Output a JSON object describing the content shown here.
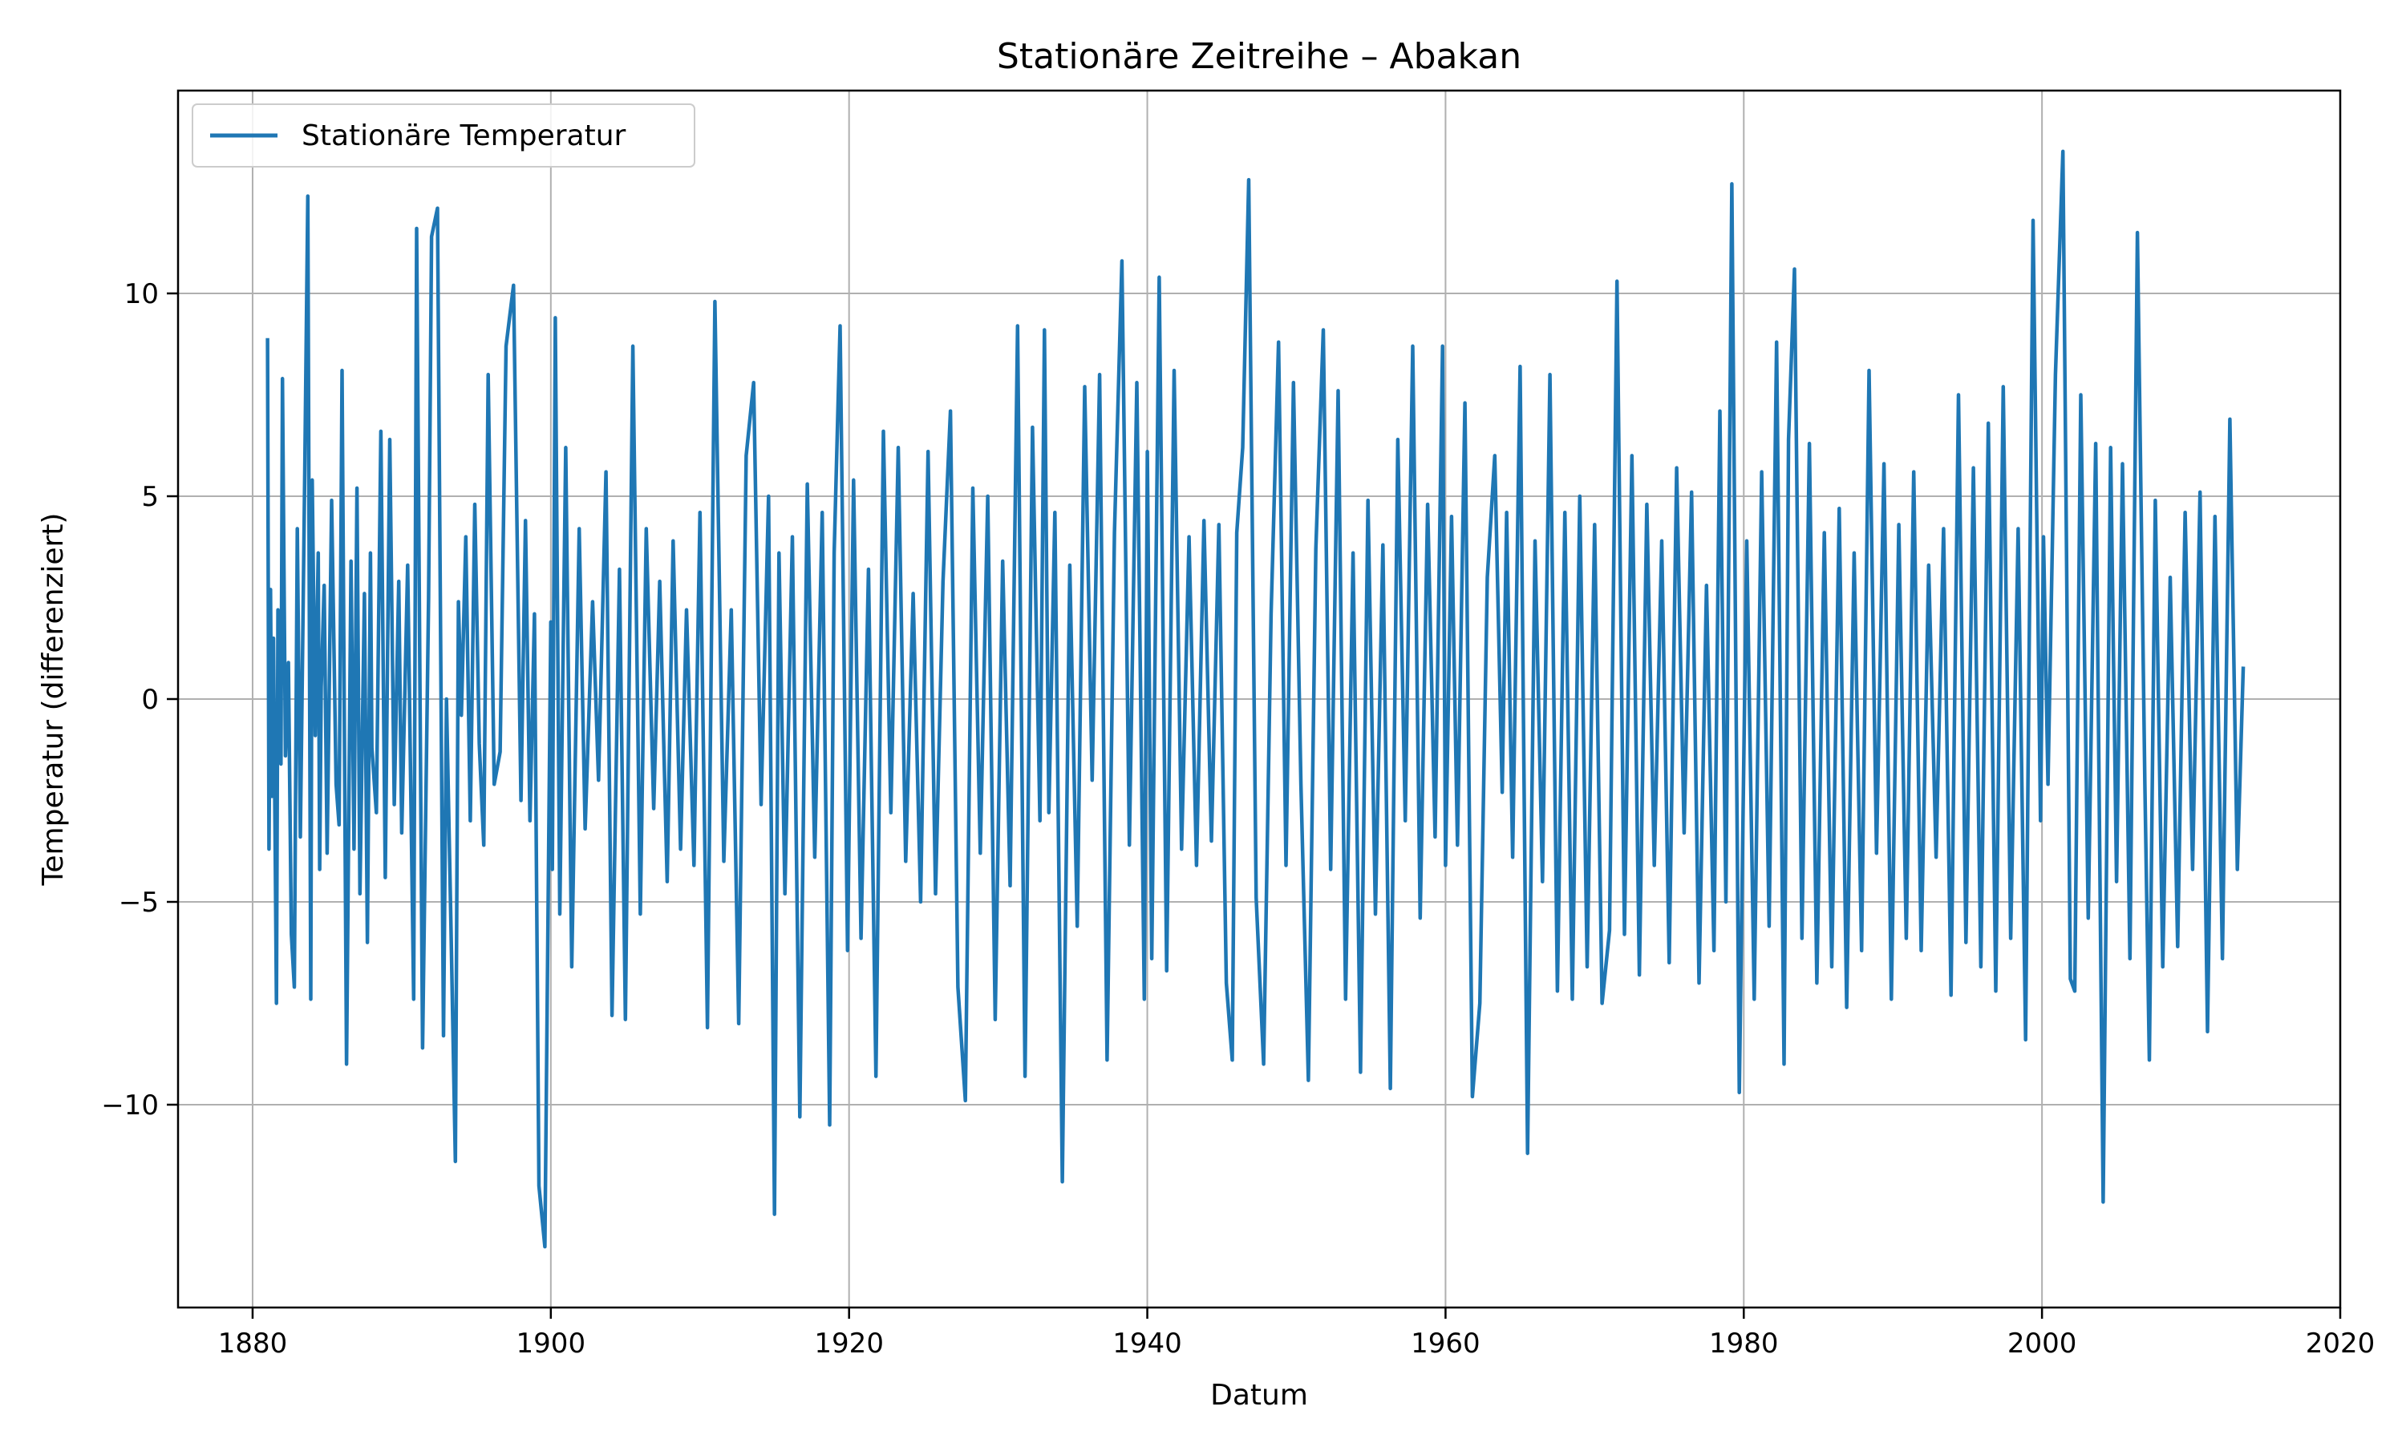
{
  "chart_data": {
    "type": "line",
    "title": "Stationäre Zeitreihe – Abakan",
    "xlabel": "Datum",
    "ylabel": "Temperatur (differenziert)",
    "xlim": [
      1875,
      2020
    ],
    "ylim": [
      -15,
      15
    ],
    "x_ticks": [
      1880,
      1900,
      1920,
      1940,
      1960,
      1980,
      2000,
      2020
    ],
    "y_ticks": [
      -10,
      -5,
      0,
      5,
      10
    ],
    "y_tick_labels": [
      "−10",
      "−5",
      "0",
      "5",
      "10"
    ],
    "grid": true,
    "legend": {
      "placement": "top-left",
      "entries": [
        "Stationäre Temperatur"
      ]
    },
    "colors": {
      "series": "#1f77b4"
    },
    "series": [
      {
        "name": "Stationäre Temperatur",
        "x": [
          1881.0,
          1881.1,
          1881.2,
          1881.3,
          1881.4,
          1881.6,
          1881.7,
          1881.9,
          1882.0,
          1882.2,
          1882.4,
          1882.6,
          1882.8,
          1883.0,
          1883.2,
          1883.5,
          1883.7,
          1883.9,
          1884.0,
          1884.2,
          1884.4,
          1884.5,
          1884.6,
          1884.8,
          1885.0,
          1885.3,
          1885.6,
          1885.8,
          1886.0,
          1886.3,
          1886.6,
          1886.8,
          1887.0,
          1887.2,
          1887.5,
          1887.7,
          1887.9,
          1888.0,
          1888.3,
          1888.6,
          1888.9,
          1889.2,
          1889.5,
          1889.8,
          1890.0,
          1890.4,
          1890.8,
          1891.0,
          1891.4,
          1891.8,
          1892.0,
          1892.4,
          1892.8,
          1893.0,
          1893.3,
          1893.6,
          1893.8,
          1894.0,
          1894.3,
          1894.6,
          1894.9,
          1895.2,
          1895.5,
          1895.8,
          1896.2,
          1896.6,
          1897.0,
          1897.5,
          1898.0,
          1898.3,
          1898.6,
          1898.9,
          1899.2,
          1899.6,
          1900.0,
          1900.1,
          1900.3,
          1900.6,
          1901.0,
          1901.4,
          1901.9,
          1902.3,
          1902.8,
          1903.2,
          1903.7,
          1904.1,
          1904.6,
          1905.0,
          1905.5,
          1906.0,
          1906.4,
          1906.9,
          1907.3,
          1907.8,
          1908.2,
          1908.7,
          1909.1,
          1909.6,
          1910.0,
          1910.5,
          1911.0,
          1911.6,
          1912.1,
          1912.6,
          1913.1,
          1913.6,
          1914.1,
          1914.6,
          1915.0,
          1915.3,
          1915.7,
          1916.2,
          1916.7,
          1917.2,
          1917.7,
          1918.2,
          1918.7,
          1919.0,
          1919.4,
          1919.9,
          1920.3,
          1920.8,
          1921.3,
          1921.8,
          1922.3,
          1922.8,
          1923.3,
          1923.8,
          1924.3,
          1924.8,
          1925.3,
          1925.8,
          1926.3,
          1926.8,
          1927.3,
          1927.8,
          1928.3,
          1928.8,
          1929.3,
          1929.8,
          1930.3,
          1930.8,
          1931.3,
          1931.8,
          1932.3,
          1932.8,
          1933.1,
          1933.4,
          1933.8,
          1934.3,
          1934.8,
          1935.3,
          1935.8,
          1936.3,
          1936.8,
          1937.3,
          1937.8,
          1938.3,
          1938.8,
          1939.3,
          1939.8,
          1940.0,
          1940.3,
          1940.8,
          1941.3,
          1941.8,
          1942.3,
          1942.8,
          1943.3,
          1943.8,
          1944.3,
          1944.8,
          1945.3,
          1945.7,
          1946.0,
          1946.4,
          1946.8,
          1947.3,
          1947.8,
          1948.3,
          1948.8,
          1949.3,
          1949.8,
          1950.3,
          1950.8,
          1951.3,
          1951.8,
          1952.3,
          1952.8,
          1953.3,
          1953.8,
          1954.3,
          1954.8,
          1955.3,
          1955.8,
          1956.3,
          1956.8,
          1957.3,
          1957.8,
          1958.3,
          1958.8,
          1959.3,
          1959.8,
          1960.0,
          1960.4,
          1960.8,
          1961.3,
          1961.8,
          1962.3,
          1962.8,
          1963.3,
          1963.8,
          1964.1,
          1964.5,
          1965.0,
          1965.5,
          1966.0,
          1966.5,
          1967.0,
          1967.5,
          1968.0,
          1968.5,
          1969.0,
          1969.5,
          1970.0,
          1970.5,
          1971.0,
          1971.5,
          1972.0,
          1972.5,
          1973.0,
          1973.5,
          1974.0,
          1974.5,
          1975.0,
          1975.5,
          1976.0,
          1976.5,
          1977.0,
          1977.5,
          1978.0,
          1978.4,
          1978.8,
          1979.2,
          1979.7,
          1980.2,
          1980.7,
          1981.2,
          1981.7,
          1982.2,
          1982.7,
          1983.0,
          1983.4,
          1983.9,
          1984.4,
          1984.9,
          1985.4,
          1985.9,
          1986.4,
          1986.9,
          1987.4,
          1987.9,
          1988.4,
          1988.9,
          1989.4,
          1989.9,
          1990.4,
          1990.9,
          1991.4,
          1991.9,
          1992.4,
          1992.9,
          1993.4,
          1993.9,
          1994.4,
          1994.9,
          1995.4,
          1995.9,
          1996.4,
          1996.9,
          1997.4,
          1997.9,
          1998.4,
          1998.9,
          1999.4,
          1999.9,
          2000.1,
          2000.4,
          2000.9,
          2001.4,
          2001.9,
          2002.2,
          2002.6,
          2003.1,
          2003.6,
          2004.1,
          2004.6,
          2005.0,
          2005.4,
          2005.9,
          2006.4,
          2006.9,
          2007.2,
          2007.6,
          2008.1,
          2008.6,
          2009.1,
          2009.6,
          2010.1,
          2010.6,
          2011.1,
          2011.6,
          2012.1,
          2012.6,
          2013.1,
          2013.5
        ],
        "y": [
          8.9,
          -3.7,
          2.7,
          -2.4,
          1.5,
          -7.5,
          2.2,
          -1.6,
          7.9,
          -1.4,
          0.9,
          -5.8,
          -7.1,
          4.2,
          -3.4,
          5.6,
          12.4,
          -7.4,
          5.4,
          -0.9,
          3.6,
          -4.2,
          0.3,
          2.8,
          -3.8,
          4.9,
          -2.1,
          -3.1,
          8.1,
          -9.0,
          3.4,
          -3.7,
          5.2,
          -4.8,
          2.6,
          -6.0,
          3.6,
          -1.2,
          -2.8,
          6.6,
          -4.4,
          6.4,
          -2.6,
          2.9,
          -3.3,
          3.3,
          -7.4,
          11.6,
          -8.6,
          2.5,
          11.4,
          12.1,
          -8.3,
          0.0,
          -5.6,
          -11.4,
          2.4,
          -0.4,
          4.0,
          -3.0,
          4.8,
          -1.1,
          -3.6,
          8.0,
          -2.1,
          -1.3,
          8.7,
          10.2,
          -2.5,
          4.4,
          -3.0,
          2.1,
          -12.0,
          -13.5,
          1.9,
          -4.2,
          9.4,
          -5.3,
          6.2,
          -6.6,
          4.2,
          -3.2,
          2.4,
          -2.0,
          5.6,
          -7.8,
          3.2,
          -7.9,
          8.7,
          -5.3,
          4.2,
          -2.7,
          2.9,
          -4.5,
          3.9,
          -3.7,
          2.2,
          -4.1,
          4.6,
          -8.1,
          9.8,
          -4.0,
          2.2,
          -8.0,
          6.0,
          7.8,
          -2.6,
          5.0,
          -12.7,
          3.6,
          -4.8,
          4.0,
          -10.3,
          5.3,
          -3.9,
          4.6,
          -10.5,
          3.6,
          9.2,
          -6.2,
          5.4,
          -5.9,
          3.2,
          -9.3,
          6.6,
          -2.8,
          6.2,
          -4.0,
          2.6,
          -5.0,
          6.1,
          -4.8,
          2.9,
          7.1,
          -7.1,
          -9.9,
          5.2,
          -3.8,
          5.0,
          -7.9,
          3.4,
          -4.6,
          9.2,
          -9.3,
          6.7,
          -3.0,
          9.1,
          -2.8,
          4.6,
          -11.9,
          3.3,
          -5.6,
          7.7,
          -2.0,
          8.0,
          -8.9,
          4.1,
          10.8,
          -3.6,
          7.8,
          -7.4,
          6.1,
          -6.4,
          10.4,
          -6.7,
          8.1,
          -3.7,
          4.0,
          -4.1,
          4.4,
          -3.5,
          4.3,
          -7.0,
          -8.9,
          4.1,
          6.2,
          12.8,
          -4.9,
          -9.0,
          2.1,
          8.8,
          -4.1,
          7.8,
          -2.1,
          -9.4,
          3.7,
          9.1,
          -4.2,
          7.6,
          -7.4,
          3.6,
          -9.2,
          4.9,
          -5.3,
          3.8,
          -9.6,
          6.4,
          -3.0,
          8.7,
          -5.4,
          4.8,
          -3.4,
          8.7,
          -4.1,
          4.5,
          -3.6,
          7.3,
          -9.8,
          -7.5,
          3.0,
          6.0,
          -2.3,
          4.6,
          -3.9,
          8.2,
          -11.2,
          3.9,
          -4.5,
          8.0,
          -7.2,
          4.6,
          -7.4,
          5.0,
          -6.6,
          4.3,
          -7.5,
          -5.7,
          10.3,
          -5.8,
          6.0,
          -6.8,
          4.8,
          -4.1,
          3.9,
          -6.5,
          5.7,
          -3.3,
          5.1,
          -7.0,
          2.8,
          -6.2,
          7.1,
          -5.0,
          12.7,
          -9.7,
          3.9,
          -7.4,
          5.6,
          -5.6,
          8.8,
          -9.0,
          6.4,
          10.6,
          -5.9,
          6.3,
          -7.0,
          4.1,
          -6.6,
          4.7,
          -7.6,
          3.6,
          -6.2,
          8.1,
          -3.8,
          5.8,
          -7.4,
          4.3,
          -5.9,
          5.6,
          -6.2,
          3.3,
          -3.9,
          4.2,
          -7.3,
          7.5,
          -6.0,
          5.7,
          -6.6,
          6.8,
          -7.2,
          7.7,
          -5.9,
          4.2,
          -8.4,
          11.8,
          -3.0,
          4.0,
          -2.1,
          8.0,
          13.5,
          -6.9,
          -7.2,
          7.5,
          -5.4,
          6.3,
          -12.4,
          6.2,
          -4.5,
          5.8,
          -6.4,
          11.5,
          -2.1,
          -8.9,
          4.9,
          -6.6,
          3.0,
          -6.1,
          4.6,
          -4.2,
          5.1,
          -8.2,
          4.5,
          -6.4,
          6.9,
          -4.2,
          0.8
        ]
      }
    ]
  }
}
